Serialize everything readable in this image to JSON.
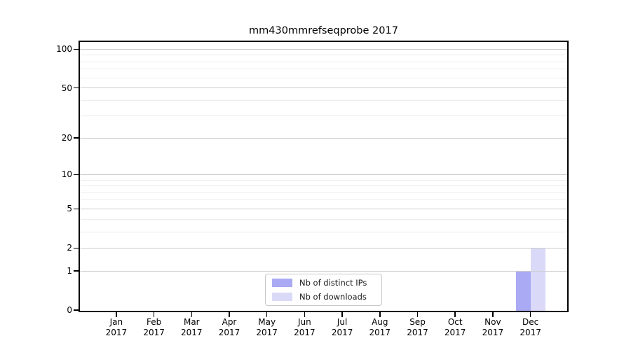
{
  "chart_data": {
    "type": "bar",
    "title": "mm430mmrefseqprobe 2017",
    "xlabel": "",
    "ylabel": "",
    "categories": [
      "Jan",
      "Feb",
      "Mar",
      "Apr",
      "May",
      "Jun",
      "Jul",
      "Aug",
      "Sep",
      "Oct",
      "Nov",
      "Dec"
    ],
    "category_sublabel": "2017",
    "series": [
      {
        "name": "Nb of distinct IPs",
        "color": "#a9a9f4",
        "values": [
          0,
          0,
          0,
          0,
          0,
          0,
          0,
          0,
          0,
          0,
          0,
          1
        ]
      },
      {
        "name": "Nb of downloads",
        "color": "#dadaf8",
        "values": [
          0,
          0,
          0,
          0,
          0,
          0,
          0,
          0,
          0,
          0,
          0,
          2
        ]
      }
    ],
    "y_scale": "log10(value+1)",
    "y_major_ticks": [
      0,
      1,
      2,
      5,
      10,
      20,
      50,
      100
    ],
    "y_minor_gridlines": [
      3,
      4,
      6,
      7,
      8,
      9,
      30,
      40,
      60,
      70,
      80,
      90
    ],
    "y_top_value": 114,
    "grid": true,
    "legend_position": "lower center"
  },
  "colors": {
    "background": "#ffffff",
    "spine": "#000000",
    "major_grid": "#cccccc",
    "minor_grid": "#ececec",
    "legend_border": "#c8c8c8",
    "text": "#000000"
  }
}
